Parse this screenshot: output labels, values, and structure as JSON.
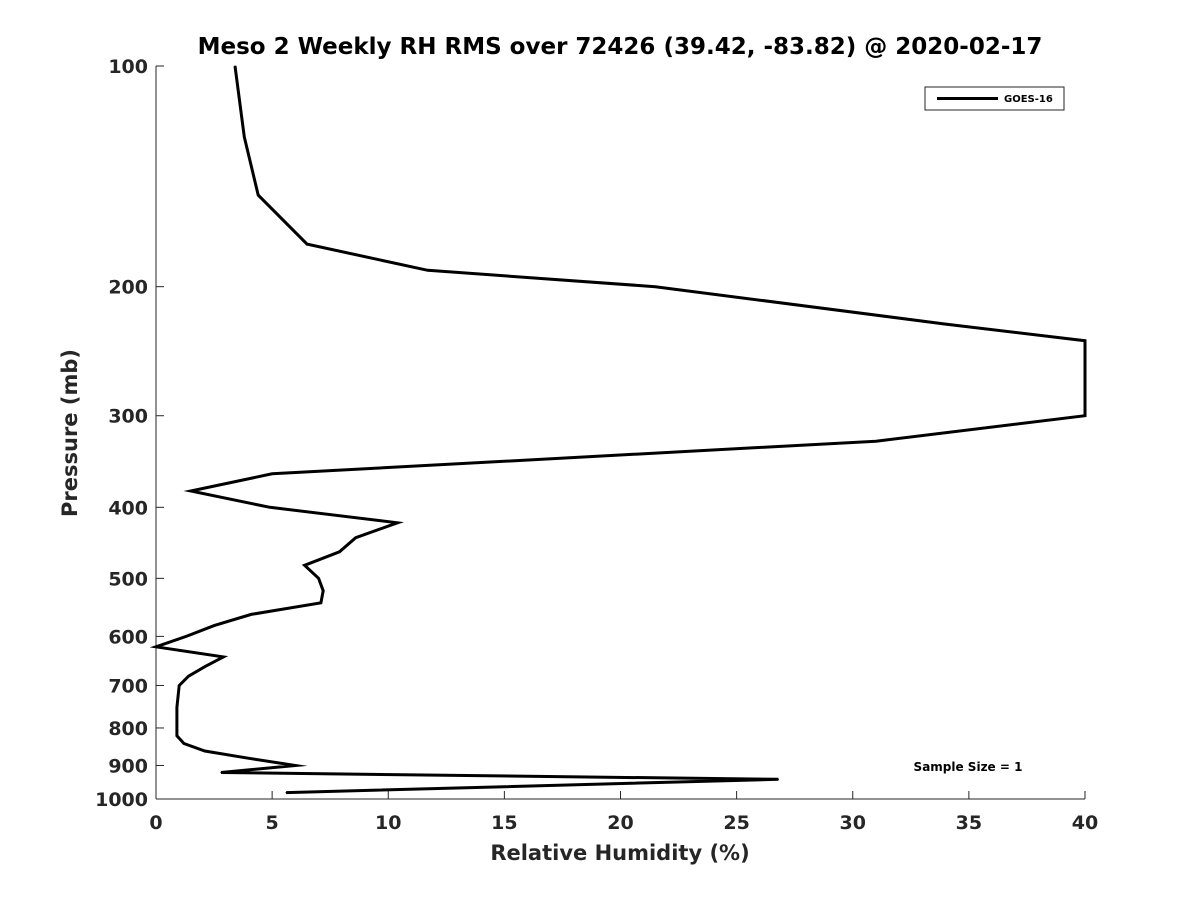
{
  "chart_data": {
    "type": "line",
    "title": "Meso 2 Weekly RH RMS over 72426 (39.42, -83.82) @ 2020-02-17",
    "xlabel": "Relative Humidity (%)",
    "ylabel": "Pressure (mb)",
    "xlim": [
      0,
      40
    ],
    "ylim": [
      100,
      1000
    ],
    "yscale": "log",
    "y_reversed": true,
    "grid": false,
    "legend_position": "top-right",
    "x_ticks": [
      "0",
      "5",
      "10",
      "15",
      "20",
      "25",
      "30",
      "35",
      "40"
    ],
    "y_ticks": [
      "100",
      "200",
      "300",
      "400",
      "500",
      "600",
      "700",
      "800",
      "900",
      "1000"
    ],
    "series": [
      {
        "name": "GOES-16",
        "color": "#000000",
        "points": [
          {
            "x": 3.4,
            "y": 100
          },
          {
            "x": 3.8,
            "y": 125
          },
          {
            "x": 4.4,
            "y": 150
          },
          {
            "x": 6.5,
            "y": 175
          },
          {
            "x": 11.7,
            "y": 190
          },
          {
            "x": 21.5,
            "y": 200
          },
          {
            "x": 34,
            "y": 225
          },
          {
            "x": 40,
            "y": 237
          },
          {
            "x": 40,
            "y": 300
          },
          {
            "x": 31,
            "y": 325
          },
          {
            "x": 5,
            "y": 360
          },
          {
            "x": 1.5,
            "y": 380
          },
          {
            "x": 4.9,
            "y": 400
          },
          {
            "x": 10.4,
            "y": 420
          },
          {
            "x": 8.6,
            "y": 440
          },
          {
            "x": 7.9,
            "y": 460
          },
          {
            "x": 6.4,
            "y": 480
          },
          {
            "x": 7,
            "y": 500
          },
          {
            "x": 7.2,
            "y": 520
          },
          {
            "x": 7.1,
            "y": 540
          },
          {
            "x": 4.1,
            "y": 560
          },
          {
            "x": 2.5,
            "y": 580
          },
          {
            "x": 1.3,
            "y": 600
          },
          {
            "x": 0,
            "y": 620
          },
          {
            "x": 2.9,
            "y": 640
          },
          {
            "x": 2.1,
            "y": 660
          },
          {
            "x": 1.4,
            "y": 680
          },
          {
            "x": 1,
            "y": 700
          },
          {
            "x": 0.9,
            "y": 750
          },
          {
            "x": 0.9,
            "y": 800
          },
          {
            "x": 0.9,
            "y": 820
          },
          {
            "x": 1.2,
            "y": 840
          },
          {
            "x": 2.1,
            "y": 860
          },
          {
            "x": 4,
            "y": 880
          },
          {
            "x": 6,
            "y": 900
          },
          {
            "x": 2.8,
            "y": 920
          },
          {
            "x": 26.8,
            "y": 940
          },
          {
            "x": 5.6,
            "y": 980
          }
        ]
      }
    ],
    "annotations": [
      {
        "text": "Sample Size = 1",
        "position": "bottom-right"
      }
    ]
  }
}
